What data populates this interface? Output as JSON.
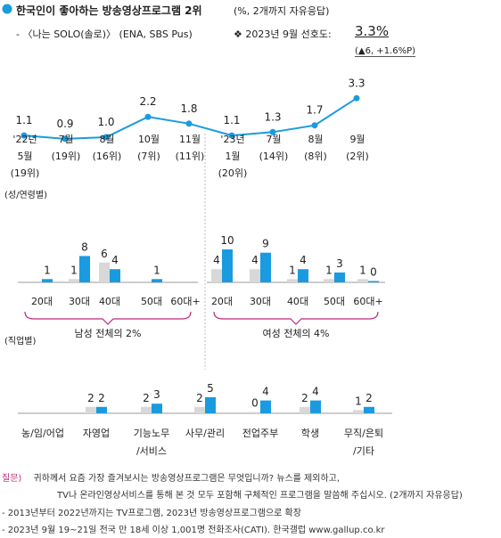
{
  "header": {
    "title": "한국인이 좋아하는 방송영상프로그램 2위",
    "title_suffix": "(%, 2개까지 자유응답)",
    "program": "- 〈나는 SOLO(솔로)〉 (ENA, SBS Pus)",
    "pref_label": "❖ 2023년 9월 선호도:",
    "pref_value": "3.3%",
    "change": "(▲6, +1.6%P)"
  },
  "notes": {
    "q_label": "질문)",
    "q_line1": "귀하께서 요즘 가장 즐겨보시는 방송영상프로그램은 무엇입니까? 뉴스를 제외하고,",
    "q_line2": "TV나 온라인영상서비스를 통해 본 것 모두 포함해 구체적인 프로그램을 말씀해 주십시오. (2개까지 자유응답)",
    "note1": "- 2013년부터 2022년까지는 TV프로그램, 2023년 방송영상프로그램으로 확장",
    "note2": "- 2023년 9월 19~21일 전국 만 18세 이상 1,001명 전화조사(CATI). 한국갤럽 www.gallup.co.kr"
  },
  "colors": {
    "accent": "#1a9be0",
    "gray": "#d8d8d8",
    "magenta": "#c0297a",
    "text": "#222222"
  },
  "chart_data": [
    {
      "type": "line",
      "x": [
        "'22년 5월 (19위)",
        "7월 (19위)",
        "8월 (16위)",
        "10월 (7위)",
        "11월 (11위)",
        "'23년 1월 (20위)",
        "7월 (14위)",
        "8월 (8위)",
        "9월 (2위)"
      ],
      "x_lines": [
        [
          "'22년",
          "5월",
          "(19위)"
        ],
        [
          "7월",
          "(19위)"
        ],
        [
          "8월",
          "(16위)"
        ],
        [
          "10월",
          "(7위)"
        ],
        [
          "11월",
          "(11위)"
        ],
        [
          "'23년",
          "1월",
          "(20위)"
        ],
        [
          "7월",
          "(14위)"
        ],
        [
          "8월",
          "(8위)"
        ],
        [
          "9월",
          "(2위)"
        ]
      ],
      "values": [
        1.1,
        0.9,
        1.0,
        2.2,
        1.8,
        1.1,
        1.3,
        1.7,
        3.3
      ],
      "labels": [
        "1.1",
        "0.9",
        "1.0",
        "2.2",
        "1.8",
        "1.1",
        "1.3",
        "1.7",
        "3.3"
      ]
    },
    {
      "type": "bar",
      "section_label": "(성/연령별)",
      "groups": [
        {
          "label": "남성 전체의 2%",
          "categories": [
            "20대",
            "30대",
            "40대",
            "50대",
            "60대+"
          ],
          "gray": [
            null,
            1,
            6,
            null,
            null
          ],
          "blue": [
            1,
            8,
            4,
            1,
            null
          ]
        },
        {
          "label": "여성 전체의 4%",
          "categories": [
            "20대",
            "30대",
            "40대",
            "50대",
            "60대+"
          ],
          "gray": [
            4,
            4,
            1,
            1,
            1
          ],
          "blue": [
            10,
            9,
            4,
            3,
            0
          ]
        }
      ]
    },
    {
      "type": "bar",
      "section_label": "(직업별)",
      "categories": [
        [
          "농/임/어업"
        ],
        [
          "자영업"
        ],
        [
          "기능노무",
          "/서비스"
        ],
        [
          "사무/관리"
        ],
        [
          "전업주부"
        ],
        [
          "학생"
        ],
        [
          "무직/은퇴",
          "/기타"
        ]
      ],
      "gray": [
        null,
        2,
        2,
        2,
        0,
        2,
        1
      ],
      "blue": [
        null,
        2,
        3,
        5,
        4,
        4,
        2
      ]
    }
  ]
}
